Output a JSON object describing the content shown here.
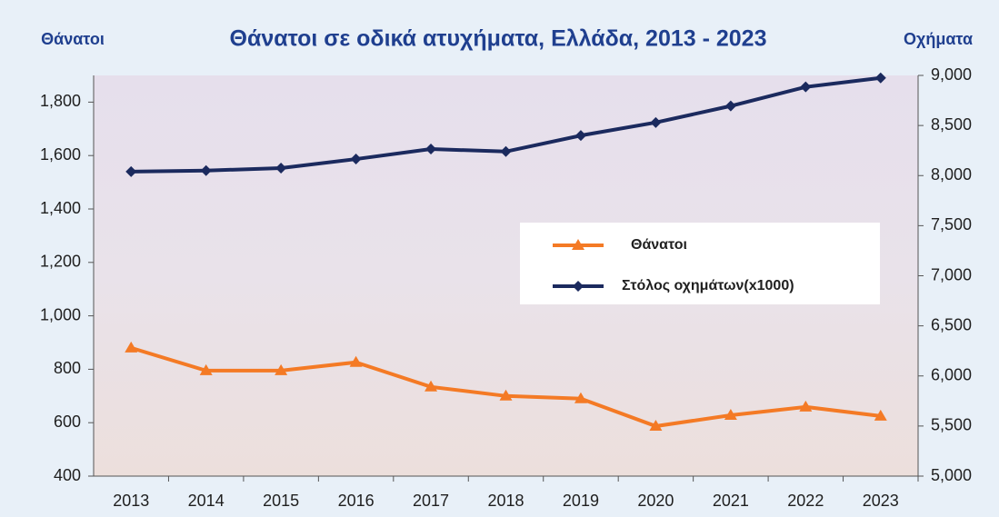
{
  "chart_data": {
    "type": "line",
    "title": "Θάνατοι σε οδικά ατυχήματα, Ελλάδα, 2013 - 2023",
    "y_label": "Θάνατοι",
    "y2_label": "Οχήματα",
    "categories": [
      "2013",
      "2014",
      "2015",
      "2016",
      "2017",
      "2018",
      "2019",
      "2020",
      "2021",
      "2022",
      "2023"
    ],
    "series": [
      {
        "name": "Θάνατοι",
        "color": "#f47a25",
        "marker": "triangle",
        "values": [
          880,
          795,
          795,
          826,
          734,
          700,
          690,
          587,
          628,
          659,
          625
        ]
      },
      {
        "name": "Στόλος οχημάτων(x1000)",
        "color": "#1b2a5e",
        "marker": "diamond",
        "axis": "y2",
        "values": [
          8040,
          8050,
          8075,
          8165,
          8265,
          8240,
          8400,
          8530,
          8695,
          8885,
          8975
        ]
      }
    ],
    "ylim": [
      400,
      1900
    ],
    "yticks": [
      400,
      600,
      800,
      {
        "value": 1000,
        "label": "1,000"
      },
      {
        "value": 1200,
        "label": "1,200"
      },
      {
        "value": 1400,
        "label": "1,400"
      },
      {
        "value": 1600,
        "label": "1,600"
      },
      {
        "value": 1800,
        "label": "1,800"
      }
    ],
    "y2lim": [
      5000,
      9000
    ],
    "y2ticks": [
      {
        "value": 5000,
        "label": "5,000"
      },
      {
        "value": 5500,
        "label": "5,500"
      },
      {
        "value": 6000,
        "label": "6,000"
      },
      {
        "value": 6500,
        "label": "6,500"
      },
      {
        "value": 7000,
        "label": "7,000"
      },
      {
        "value": 7500,
        "label": "7,500"
      },
      {
        "value": 8000,
        "label": "8,000"
      },
      {
        "value": 8500,
        "label": "8,500"
      },
      {
        "value": 9000,
        "label": "9,000"
      }
    ],
    "legend": "center-right"
  }
}
